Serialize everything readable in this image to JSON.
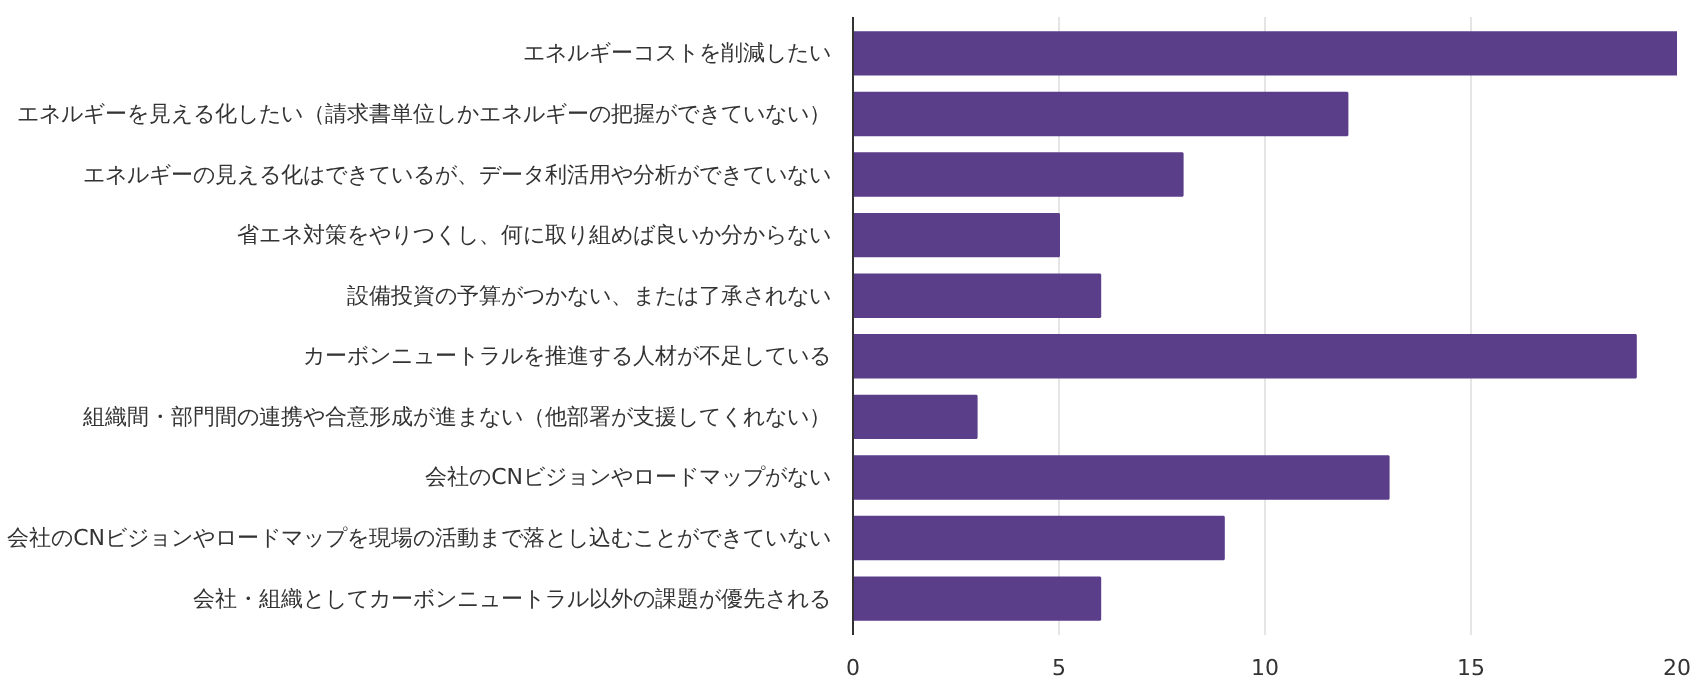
{
  "chart_data": {
    "type": "bar",
    "orientation": "horizontal",
    "categories": [
      "エネルギーコストを削減したい",
      "エネルギーを見える化したい（請求書単位しかエネルギーの把握ができていない）",
      "エネルギーの見える化はできているが、データ利活用や分析ができていない",
      "省エネ対策をやりつくし、何に取り組めば良いか分からない",
      "設備投資の予算がつかない、または了承されない",
      "カーボンニュートラルを推進する人材が不足している",
      "組織間・部門間の連携や合意形成が進まない（他部署が支援してくれない）",
      "会社のCNビジョンやロードマップがない",
      "会社のCNビジョンやロードマップを現場の活動まで落とし込むことができていない",
      "会社・組織としてカーボンニュートラル以外の課題が優先される"
    ],
    "values": [
      20,
      12,
      8,
      5,
      6,
      19,
      3,
      13,
      9,
      6
    ],
    "color": "#5b3e8a",
    "xlim": [
      0,
      20
    ],
    "xticks": [
      0,
      5,
      10,
      15,
      20
    ],
    "grid": "x"
  }
}
